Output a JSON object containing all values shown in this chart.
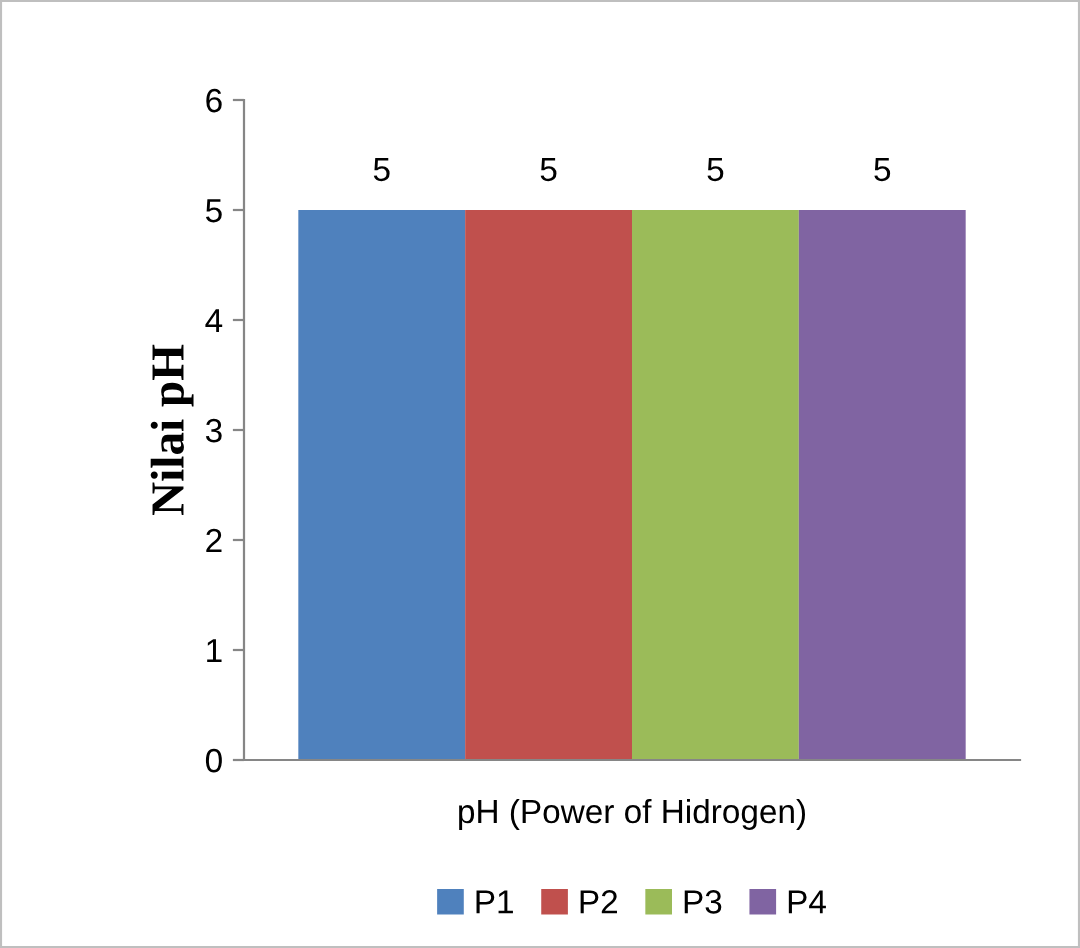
{
  "chart_data": {
    "type": "bar",
    "ylabel": "Nilai pH",
    "categories": [
      "pH (Power of Hidrogen)"
    ],
    "series": [
      {
        "name": "P1",
        "color": "#4f81bd",
        "values": [
          5
        ]
      },
      {
        "name": "P2",
        "color": "#c0504d",
        "values": [
          5
        ]
      },
      {
        "name": "P3",
        "color": "#9bbb59",
        "values": [
          5
        ]
      },
      {
        "name": "P4",
        "color": "#8064a2",
        "values": [
          5
        ]
      }
    ],
    "ylim": [
      0,
      6
    ],
    "yticks": [
      0,
      1,
      2,
      3,
      4,
      5,
      6
    ],
    "grid": false,
    "legend": "bottom",
    "data_labels": true
  }
}
